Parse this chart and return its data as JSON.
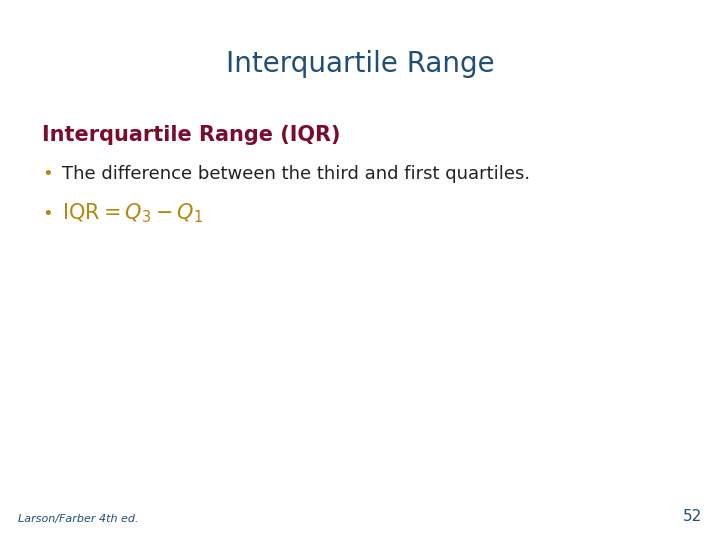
{
  "title": "Interquartile Range",
  "title_color": "#1F4E79",
  "title_fontsize": 20,
  "title_bold": false,
  "heading_text": "Interquartile Range (IQR)",
  "heading_color": "#7B0D2A",
  "heading_fontsize": 15,
  "heading_bold": true,
  "bullet1_text": "The difference between the third and first quartiles.",
  "bullet1_color": "#222222",
  "bullet1_fontsize": 13,
  "bullet2_color": "#B8860B",
  "bullet2_fontsize": 13,
  "bullet_dot_color": "#B8860B",
  "footer_text": "Larson/Farber 4th ed.",
  "footer_color": "#1F4E79",
  "footer_fontsize": 8,
  "page_number": "52",
  "page_number_color": "#1F4E79",
  "page_number_fontsize": 11,
  "background_color": "#FFFFFF"
}
